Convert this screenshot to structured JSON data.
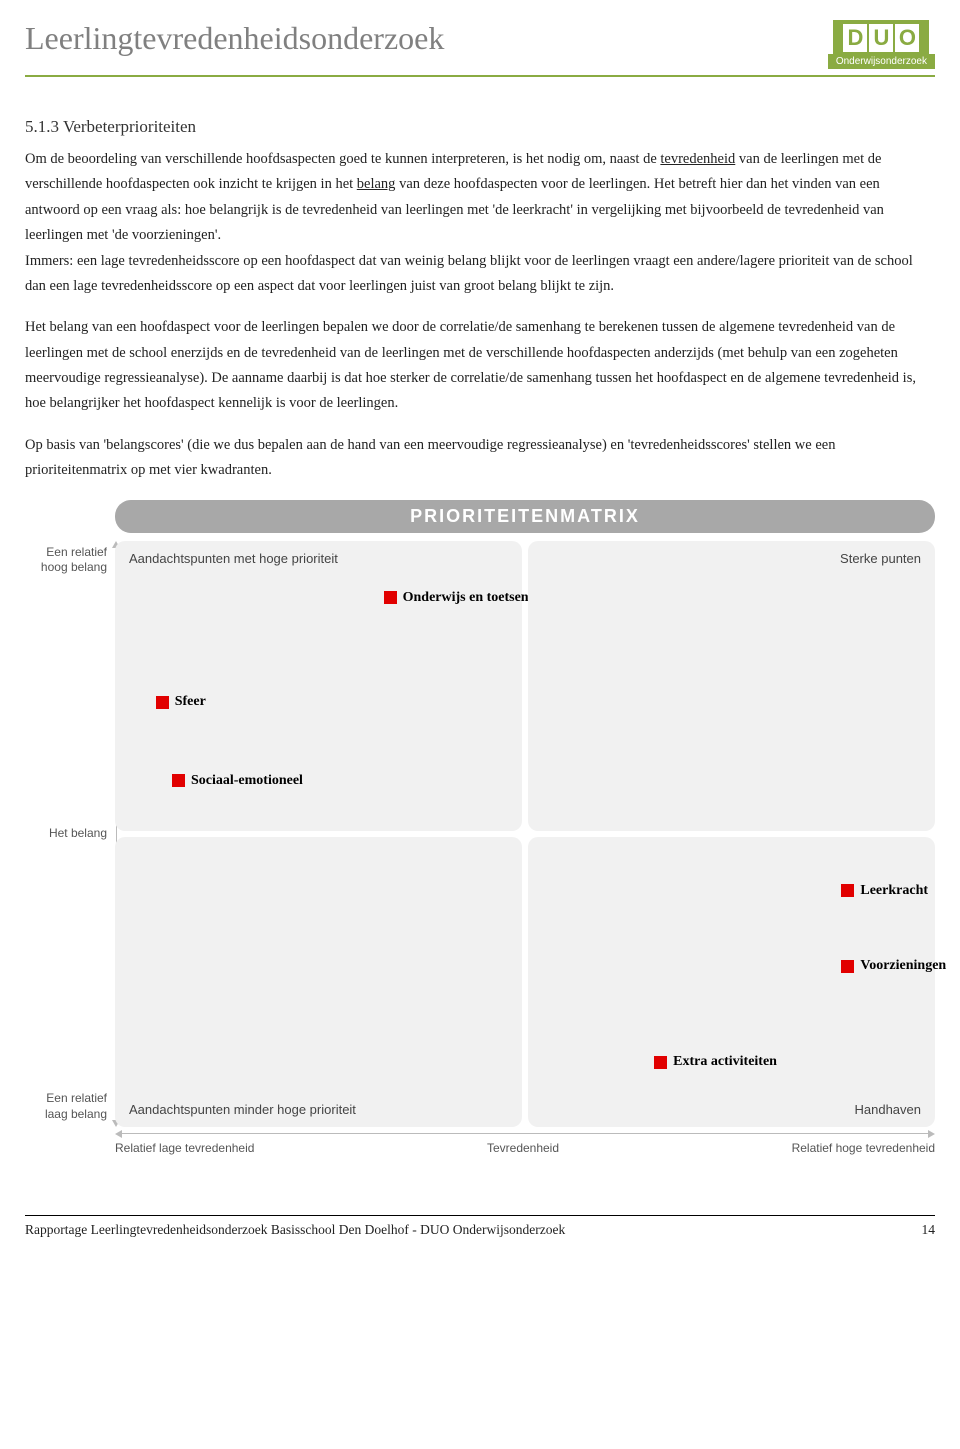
{
  "header": {
    "title": "Leerlingtevredenheidsonderzoek",
    "logo_letters": [
      "D",
      "U",
      "O"
    ],
    "logo_sub": "Onderwijsonderzoek"
  },
  "section": {
    "heading": "5.1.3 Verbeterprioriteiten",
    "para1_a": "Om de beoordeling van verschillende hoofdsaspecten goed te kunnen interpreteren, is het nodig om, naast de ",
    "para1_u1": "tevredenheid",
    "para1_b": " van de leerlingen met de verschillende hoofdaspecten ook inzicht te krijgen in het ",
    "para1_u2": "belang",
    "para1_c": " van deze hoofdaspecten voor de leerlingen. Het betreft hier dan het vinden van een antwoord op een vraag als: hoe belangrijk is de tevredenheid van leerlingen met 'de leerkracht' in vergelijking met bijvoorbeeld de tevredenheid van leerlingen met 'de voorzieningen'.",
    "para1_d": "Immers: een lage tevredenheidsscore op een hoofdaspect dat van weinig belang blijkt voor de leerlingen vraagt een andere/lagere prioriteit van de school dan een lage tevredenheidsscore op een aspect dat voor leerlingen juist van groot belang blijkt te zijn.",
    "para2": "Het belang van een hoofdaspect voor de leerlingen bepalen we door de correlatie/de samenhang te berekenen tussen de algemene tevredenheid van de leerlingen met de school enerzijds en de tevredenheid van de leerlingen met de verschillende hoofdaspecten anderzijds (met behulp van een zogeheten meervoudige regressieanalyse). De aanname daarbij is dat hoe sterker de correlatie/de samenhang tussen het hoofdaspect en de algemene tevredenheid is, hoe belangrijker het hoofdaspect kennelijk is voor de leerlingen.",
    "para3": "Op basis van 'belangscores' (die we dus bepalen aan de hand van een meervoudige regressieanalyse) en 'tevredenheidsscores' stellen we een prioriteitenmatrix op met vier kwadranten."
  },
  "matrix": {
    "title": "PRIORITEITENMATRIX",
    "y_top": "Een relatief\nhoog belang",
    "y_mid": "Het belang",
    "y_bot": "Een relatief\nlaag belang",
    "x_left": "Relatief lage tevredenheid",
    "x_mid": "Tevredenheid",
    "x_right": "Relatief hoge tevredenheid",
    "q_tl": "Aandachtspunten met hoge prioriteit",
    "q_tr": "Sterke punten",
    "q_bl": "Aandachtspunten minder hoge prioriteit",
    "q_br": "Handhaven",
    "marker_color": "#e10000",
    "quad_bg": "#f1f1f1",
    "points": [
      {
        "label": "Onderwijs en toetsen",
        "quad": "tl",
        "left_pct": 66,
        "top_pct": 17
      },
      {
        "label": "Sfeer",
        "quad": "tl",
        "left_pct": 10,
        "top_pct": 53
      },
      {
        "label": "Sociaal-emotioneel",
        "quad": "tl",
        "left_pct": 14,
        "top_pct": 80
      },
      {
        "label": "Leerkracht",
        "quad": "br",
        "left_pct": 77,
        "top_pct": 16
      },
      {
        "label": "Voorzieningen",
        "quad": "br",
        "left_pct": 77,
        "top_pct": 42
      },
      {
        "label": "Extra activiteiten",
        "quad": "br",
        "left_pct": 31,
        "top_pct": 75
      }
    ]
  },
  "footer": {
    "text": "Rapportage Leerlingtevredenheidsonderzoek Basisschool Den Doelhof - DUO Onderwijsonderzoek",
    "page": "14"
  }
}
